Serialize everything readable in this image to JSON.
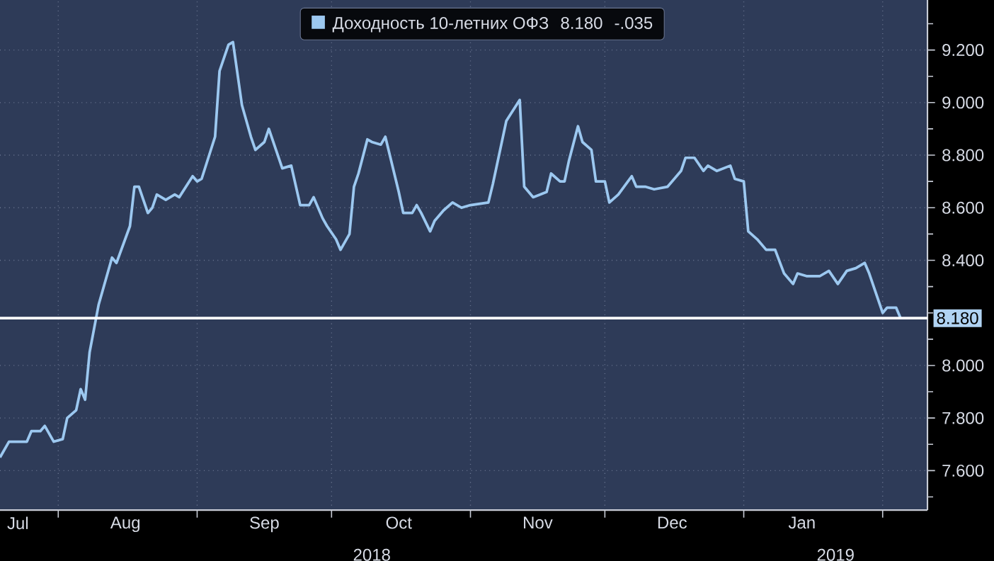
{
  "chart_data": {
    "type": "line",
    "x": [
      "2018-07-19",
      "2018-07-21",
      "2018-07-25",
      "2018-07-26",
      "2018-07-28",
      "2018-07-29",
      "2018-07-31",
      "2018-08-02",
      "2018-08-03",
      "2018-08-05",
      "2018-08-06",
      "2018-08-07",
      "2018-08-08",
      "2018-08-10",
      "2018-08-13",
      "2018-08-14",
      "2018-08-17",
      "2018-08-18",
      "2018-08-19",
      "2018-08-21",
      "2018-08-22",
      "2018-08-23",
      "2018-08-25",
      "2018-08-27",
      "2018-08-28",
      "2018-08-31",
      "2018-09-01",
      "2018-09-02",
      "2018-09-05",
      "2018-09-06",
      "2018-09-08",
      "2018-09-09",
      "2018-09-11",
      "2018-09-13",
      "2018-09-14",
      "2018-09-16",
      "2018-09-17",
      "2018-09-20",
      "2018-09-22",
      "2018-09-24",
      "2018-09-26",
      "2018-09-27",
      "2018-09-29",
      "2018-09-30",
      "2018-10-02",
      "2018-10-03",
      "2018-10-05",
      "2018-10-06",
      "2018-10-07",
      "2018-10-09",
      "2018-10-10",
      "2018-10-12",
      "2018-10-13",
      "2018-10-14",
      "2018-10-16",
      "2018-10-17",
      "2018-10-19",
      "2018-10-20",
      "2018-10-21",
      "2018-10-23",
      "2018-10-24",
      "2018-10-26",
      "2018-10-28",
      "2018-10-30",
      "2018-11-01",
      "2018-11-05",
      "2018-11-06",
      "2018-11-09",
      "2018-11-12",
      "2018-11-13",
      "2018-11-15",
      "2018-11-18",
      "2018-11-19",
      "2018-11-21",
      "2018-11-22",
      "2018-11-23",
      "2018-11-25",
      "2018-11-26",
      "2018-11-28",
      "2018-11-29",
      "2018-12-01",
      "2018-12-02",
      "2018-12-04",
      "2018-12-07",
      "2018-12-08",
      "2018-12-10",
      "2018-12-12",
      "2018-12-15",
      "2018-12-18",
      "2018-12-19",
      "2018-12-21",
      "2018-12-23",
      "2018-12-24",
      "2018-12-26",
      "2018-12-29",
      "2018-12-30",
      "2019-01-01",
      "2019-01-02",
      "2019-01-04",
      "2019-01-06",
      "2019-01-08",
      "2019-01-10",
      "2019-01-12",
      "2019-01-13",
      "2019-01-15",
      "2019-01-18",
      "2019-01-20",
      "2019-01-22",
      "2019-01-24",
      "2019-01-26",
      "2019-01-28",
      "2019-01-29",
      "2019-02-01",
      "2019-02-02",
      "2019-02-04",
      "2019-02-05"
    ],
    "series": [
      {
        "name": "Доходность 10-летних ОФЗ",
        "color": "#9cc8f0",
        "values": [
          7.65,
          7.71,
          7.71,
          7.75,
          7.75,
          7.77,
          7.71,
          7.72,
          7.8,
          7.83,
          7.91,
          7.87,
          8.05,
          8.23,
          8.41,
          8.39,
          8.53,
          8.68,
          8.68,
          8.58,
          8.6,
          8.65,
          8.63,
          8.65,
          8.64,
          8.72,
          8.7,
          8.71,
          8.87,
          9.12,
          9.22,
          9.23,
          8.99,
          8.87,
          8.82,
          8.85,
          8.9,
          8.75,
          8.76,
          8.61,
          8.61,
          8.64,
          8.56,
          8.53,
          8.48,
          8.44,
          8.5,
          8.68,
          8.73,
          8.86,
          8.85,
          8.84,
          8.87,
          8.8,
          8.66,
          8.58,
          8.58,
          8.61,
          8.58,
          8.51,
          8.55,
          8.59,
          8.62,
          8.6,
          8.61,
          8.62,
          8.69,
          8.93,
          9.01,
          8.68,
          8.64,
          8.66,
          8.73,
          8.7,
          8.7,
          8.78,
          8.91,
          8.85,
          8.82,
          8.7,
          8.7,
          8.62,
          8.65,
          8.72,
          8.68,
          8.68,
          8.67,
          8.68,
          8.74,
          8.79,
          8.79,
          8.74,
          8.76,
          8.74,
          8.76,
          8.71,
          8.7,
          8.51,
          8.48,
          8.44,
          8.44,
          8.35,
          8.31,
          8.35,
          8.34,
          8.34,
          8.36,
          8.31,
          8.36,
          8.37,
          8.39,
          8.35,
          8.2,
          8.22,
          8.22,
          8.18
        ]
      }
    ],
    "xlim": [
      "2018-07-19",
      "2019-02-11"
    ],
    "xticks": [
      {
        "value": "2018-07-23",
        "label": "Jul"
      },
      {
        "value": "2018-08-01",
        "label": null
      },
      {
        "value": "2018-08-16",
        "label": "Aug"
      },
      {
        "value": "2018-09-01",
        "label": null
      },
      {
        "value": "2018-09-16",
        "label": "Sep"
      },
      {
        "value": "2018-10-01",
        "label": null
      },
      {
        "value": "2018-10-16",
        "label": "Oct"
      },
      {
        "value": "2018-11-01",
        "label": null
      },
      {
        "value": "2018-11-16",
        "label": "Nov"
      },
      {
        "value": "2018-12-01",
        "label": null
      },
      {
        "value": "2018-12-16",
        "label": "Dec"
      },
      {
        "value": "2019-01-01",
        "label": null
      },
      {
        "value": "2019-01-14",
        "label": "Jan"
      },
      {
        "value": "2019-02-01",
        "label": null
      }
    ],
    "ylim": [
      7.45,
      9.39
    ],
    "yticks": [
      {
        "value": 7.5,
        "label": null
      },
      {
        "value": 7.6,
        "label": "7.600"
      },
      {
        "value": 7.7,
        "label": null
      },
      {
        "value": 7.8,
        "label": "7.800"
      },
      {
        "value": 7.9,
        "label": null
      },
      {
        "value": 8.0,
        "label": "8.000"
      },
      {
        "value": 8.1,
        "label": null
      },
      {
        "value": 8.2,
        "label": null
      },
      {
        "value": 8.3,
        "label": null
      },
      {
        "value": 8.4,
        "label": "8.400"
      },
      {
        "value": 8.5,
        "label": null
      },
      {
        "value": 8.6,
        "label": "8.600"
      },
      {
        "value": 8.7,
        "label": null
      },
      {
        "value": 8.8,
        "label": "8.800"
      },
      {
        "value": 8.9,
        "label": null
      },
      {
        "value": 9.0,
        "label": "9.000"
      },
      {
        "value": 9.1,
        "label": null
      },
      {
        "value": 9.2,
        "label": "9.200"
      },
      {
        "value": 9.3,
        "label": null
      }
    ],
    "ref_lines": [
      {
        "axis": "y",
        "value": 8.18,
        "label": "8.180",
        "color": "#ffffff"
      }
    ],
    "annotations": [
      "8.180",
      "-.035",
      "2018",
      "2019"
    ],
    "grid": true,
    "legend": "top",
    "line_style": "solid"
  }
}
